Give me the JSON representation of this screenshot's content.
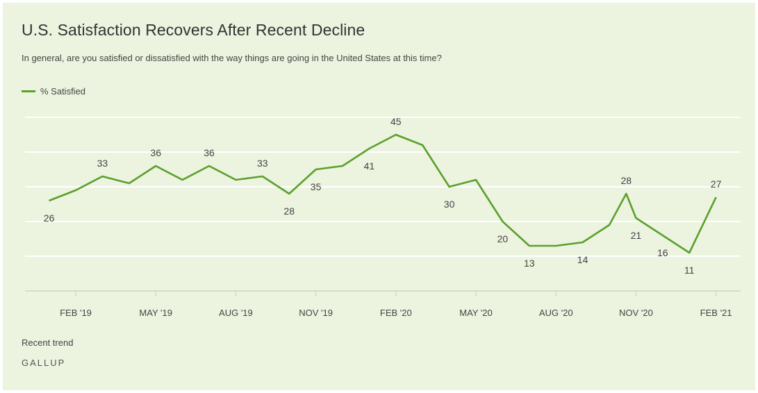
{
  "title": "U.S. Satisfaction Recovers After Recent Decline",
  "subtitle": "In general, are you satisfied or dissatisfied with the way things are going in the United States at this time?",
  "legend_label": "% Satisfied",
  "footer": {
    "trend_label": "Recent trend",
    "brand": "GALLUP"
  },
  "colors": {
    "background": "#ecf3df",
    "series": "#5aa02c",
    "gridline": "#ffffff",
    "text": "#444444"
  },
  "chart_data": {
    "type": "line",
    "title": "U.S. Satisfaction Recovers After Recent Decline",
    "xlabel": "",
    "ylabel": "",
    "grid": true,
    "legend": "top-left",
    "ylim": [
      0,
      50
    ],
    "x_ticks": [
      "FEB '19",
      "MAY '19",
      "AUG '19",
      "NOV '19",
      "FEB '20",
      "MAY '20",
      "AUG '20",
      "NOV '20",
      "FEB '21"
    ],
    "series": [
      {
        "name": "% Satisfied",
        "x": [
          "2019-01",
          "2019-02",
          "2019-03",
          "2019-04",
          "2019-05",
          "2019-06",
          "2019-07",
          "2019-08",
          "2019-09",
          "2019-10",
          "2019-11",
          "2019-12",
          "2020-01",
          "2020-02",
          "2020-03",
          "2020-04",
          "2020-05",
          "2020-06",
          "2020-07",
          "2020-08",
          "2020-09",
          "2020-10-01",
          "2020-10-20",
          "2020-11",
          "2020-12",
          "2021-01",
          "2021-02"
        ],
        "values": [
          26,
          29,
          33,
          31,
          36,
          32,
          36,
          32,
          33,
          28,
          35,
          36,
          41,
          45,
          42,
          30,
          32,
          20,
          13,
          13,
          14,
          19,
          28,
          21,
          16,
          11,
          27
        ],
        "labels": [
          "26",
          "",
          "33",
          "",
          "36",
          "",
          "36",
          "",
          "33",
          "28",
          "35",
          "",
          "41",
          "45",
          "",
          "30",
          "",
          "20",
          "13",
          "",
          "14",
          "",
          "28",
          "21",
          "16",
          "11",
          "27"
        ]
      }
    ]
  }
}
